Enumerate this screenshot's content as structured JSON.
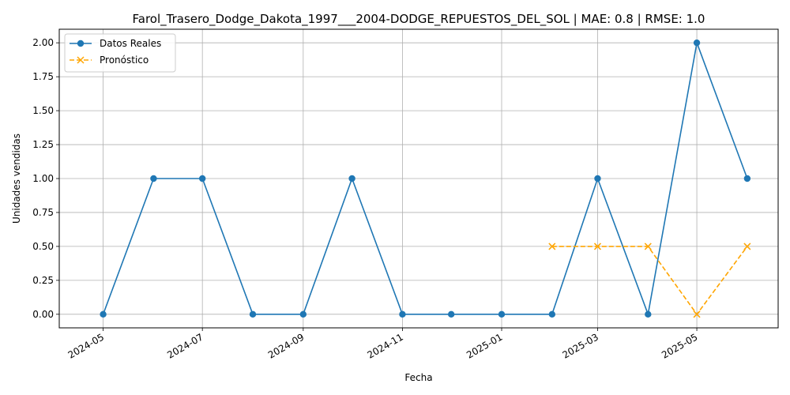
{
  "chart_data": {
    "type": "line",
    "title": "Farol_Trasero_Dodge_Dakota_1997___2004-DODGE_REPUESTOS_DEL_SOL | MAE: 0.8 | RMSE: 1.0",
    "xlabel": "Fecha",
    "ylabel": "Unidades vendidas",
    "ylim": [
      -0.1,
      2.1
    ],
    "xlim": [
      "2024-04-04",
      "2025-06-20"
    ],
    "grid": true,
    "legend_position": "upper-left",
    "x_ticks": [
      "2024-05",
      "2024-07",
      "2024-09",
      "2024-11",
      "2025-01",
      "2025-03",
      "2025-05"
    ],
    "y_ticks": [
      "0.00",
      "0.25",
      "0.50",
      "0.75",
      "1.00",
      "1.25",
      "1.50",
      "1.75",
      "2.00"
    ],
    "series": [
      {
        "name": "Datos Reales",
        "color": "#1f77b4",
        "style": "solid",
        "marker": "circle",
        "points": [
          {
            "x": "2024-05-01",
            "y": 0
          },
          {
            "x": "2024-06-01",
            "y": 1
          },
          {
            "x": "2024-07-01",
            "y": 1
          },
          {
            "x": "2024-08-01",
            "y": 0
          },
          {
            "x": "2024-09-01",
            "y": 0
          },
          {
            "x": "2024-10-01",
            "y": 1
          },
          {
            "x": "2024-11-01",
            "y": 0
          },
          {
            "x": "2024-12-01",
            "y": 0
          },
          {
            "x": "2025-01-01",
            "y": 0
          },
          {
            "x": "2025-02-01",
            "y": 0
          },
          {
            "x": "2025-03-01",
            "y": 1
          },
          {
            "x": "2025-04-01",
            "y": 0
          },
          {
            "x": "2025-05-01",
            "y": 2
          },
          {
            "x": "2025-06-01",
            "y": 1
          }
        ]
      },
      {
        "name": "Pronóstico",
        "color": "#ffa500",
        "style": "dashed",
        "marker": "x",
        "points": [
          {
            "x": "2025-02-01",
            "y": 0.5
          },
          {
            "x": "2025-03-01",
            "y": 0.5
          },
          {
            "x": "2025-04-01",
            "y": 0.5
          },
          {
            "x": "2025-05-01",
            "y": 0
          },
          {
            "x": "2025-06-01",
            "y": 0.5
          }
        ]
      }
    ]
  }
}
